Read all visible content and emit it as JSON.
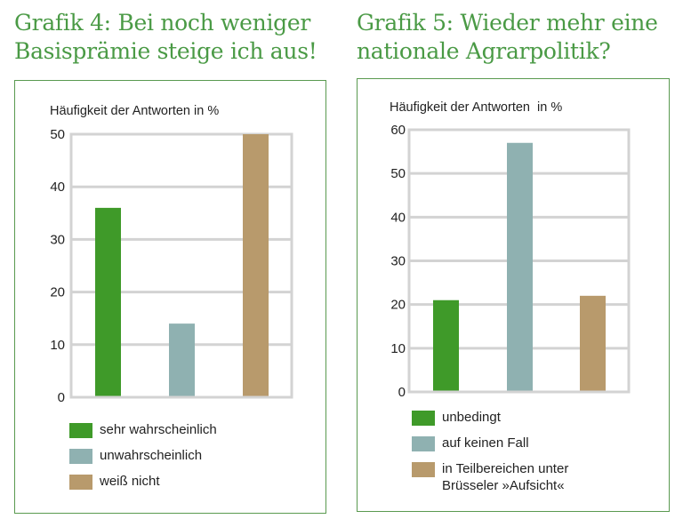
{
  "chart_data": [
    {
      "type": "bar",
      "title": "Grafik 4: Bei noch weniger Basisprämie steige ich aus!",
      "title_lines": [
        "Grafik 4: Bei noch weniger",
        "Basisprämie steige ich aus!"
      ],
      "ylabel": "Häufigkeit der Antworten in %",
      "xlabel": "",
      "ylim": [
        0,
        50
      ],
      "yticks": [
        0,
        10,
        20,
        30,
        40,
        50
      ],
      "grid": true,
      "categories": [
        "sehr wahrscheinlich",
        "unwahrscheinlich",
        "weiß nicht"
      ],
      "values": [
        36,
        14,
        50
      ],
      "colors": [
        "#3f9a29",
        "#8fb1b1",
        "#b89a6c"
      ],
      "legend": [
        "sehr wahrscheinlich",
        "unwahrscheinlich",
        "weiß nicht"
      ],
      "legend_position": "bottom"
    },
    {
      "type": "bar",
      "title": "Grafik 5: Wieder mehr eine nationale Agrarpolitik?",
      "title_lines": [
        "Grafik 5: Wieder mehr eine",
        "nationale Agrarpolitik?"
      ],
      "ylabel": "Häufigkeit der Antworten  in %",
      "xlabel": "",
      "ylim": [
        0,
        60
      ],
      "yticks": [
        0,
        10,
        20,
        30,
        40,
        50,
        60
      ],
      "grid": true,
      "categories": [
        "unbedingt",
        "auf keinen Fall",
        "in Teilbereichen unter Brüsseler »Aufsicht«"
      ],
      "values": [
        21,
        57,
        22
      ],
      "colors": [
        "#3f9a29",
        "#8fb1b1",
        "#b89a6c"
      ],
      "legend": [
        "unbedingt",
        "auf keinen Fall",
        "in Teilbereichen unter Brüsseler »Aufsicht«"
      ],
      "legend_lines": [
        [
          "unbedingt"
        ],
        [
          "auf keinen Fall"
        ],
        [
          "in Teilbereichen unter",
          "Brüsseler »Aufsicht«"
        ]
      ],
      "legend_position": "bottom"
    }
  ],
  "style": {
    "title_color": "#4a9a45",
    "border_color": "#5a9a50",
    "grid_color": "#d3d3d3"
  }
}
